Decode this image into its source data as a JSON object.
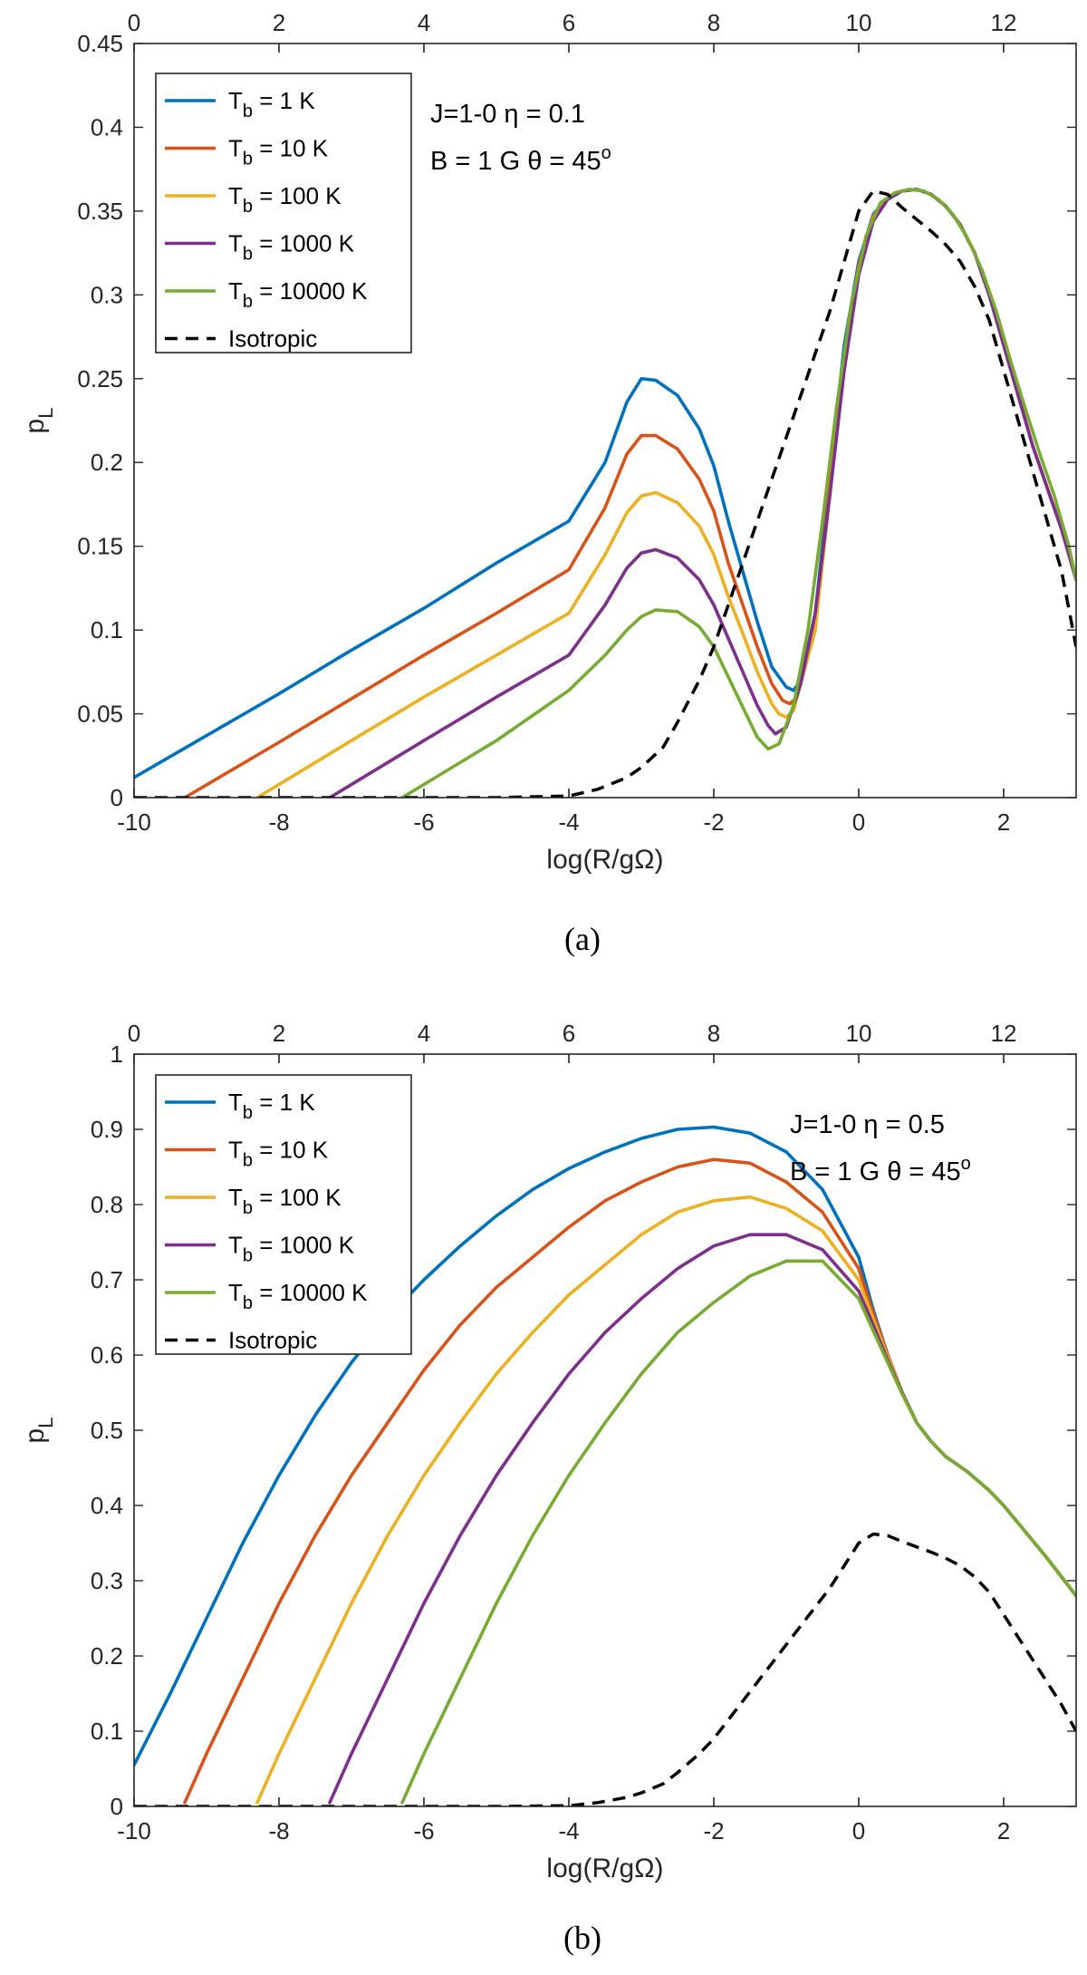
{
  "chart_data": [
    {
      "type": "line",
      "panel_label": "(a)",
      "xlabel": "log(R/gΩ)",
      "ylabel": "p",
      "ylabel_sub": "L",
      "xlim": [
        -10,
        3
      ],
      "ylim": [
        0,
        0.45
      ],
      "top_xlim": [
        0,
        13
      ],
      "xticks": [
        -10,
        -8,
        -6,
        -4,
        -2,
        0,
        2
      ],
      "yticks": [
        0,
        0.05,
        0.1,
        0.15,
        0.2,
        0.25,
        0.3,
        0.35,
        0.4,
        0.45
      ],
      "yticklabels": [
        "0",
        "0.05",
        "0.1",
        "0.15",
        "0.2",
        "0.25",
        "0.3",
        "0.35",
        "0.4",
        "0.45"
      ],
      "top_xticks": [
        0,
        2,
        4,
        6,
        8,
        10,
        12
      ],
      "legend_position": "top-left",
      "annotations": [
        {
          "line": "J=1-0  η = 0.1"
        },
        {
          "line": "B = 1 G  θ = 45o"
        }
      ],
      "series": [
        {
          "name": "Tb = 1 K",
          "label_main": "T",
          "label_sub": "b",
          "label_rest": " = 1 K",
          "color": "#0072BD",
          "style": "solid",
          "x": [
            -10,
            -9,
            -8,
            -7,
            -6,
            -5,
            -4,
            -3.5,
            -3.2,
            -3,
            -2.8,
            -2.5,
            -2.2,
            -2,
            -1.8,
            -1.6,
            -1.4,
            -1.2,
            -1.0,
            -0.9,
            -0.8,
            -0.6,
            -0.4,
            -0.2,
            0,
            0.2,
            0.4,
            0.6,
            0.8,
            1.0,
            1.2,
            1.4,
            1.6,
            1.8,
            2.0,
            2.2,
            2.4,
            2.6,
            2.8,
            3.0
          ],
          "y": [
            0.012,
            0.037,
            0.062,
            0.088,
            0.113,
            0.14,
            0.165,
            0.2,
            0.236,
            0.25,
            0.249,
            0.24,
            0.22,
            0.198,
            0.165,
            0.135,
            0.105,
            0.078,
            0.066,
            0.064,
            0.07,
            0.11,
            0.19,
            0.27,
            0.32,
            0.348,
            0.358,
            0.362,
            0.363,
            0.36,
            0.353,
            0.342,
            0.325,
            0.3,
            0.27,
            0.24,
            0.21,
            0.185,
            0.16,
            0.13
          ]
        },
        {
          "name": "Tb = 10 K",
          "label_main": "T",
          "label_sub": "b",
          "label_rest": " = 10 K",
          "color": "#D95319",
          "style": "solid",
          "x": [
            -9.3,
            -8,
            -7,
            -6,
            -5,
            -4,
            -3.5,
            -3.2,
            -3,
            -2.8,
            -2.5,
            -2.2,
            -2,
            -1.8,
            -1.6,
            -1.4,
            -1.2,
            -1.05,
            -0.95,
            -0.85,
            -0.6,
            -0.4,
            -0.2,
            0,
            0.2,
            0.4,
            0.6,
            0.8,
            1.0,
            1.2,
            1.4,
            1.6,
            1.8,
            2.0,
            2.2,
            2.4,
            2.6,
            2.8,
            3.0
          ],
          "y": [
            0.0,
            0.033,
            0.059,
            0.085,
            0.11,
            0.136,
            0.173,
            0.205,
            0.216,
            0.216,
            0.208,
            0.19,
            0.171,
            0.14,
            0.115,
            0.09,
            0.068,
            0.058,
            0.056,
            0.06,
            0.105,
            0.185,
            0.265,
            0.318,
            0.347,
            0.358,
            0.362,
            0.363,
            0.36,
            0.353,
            0.342,
            0.325,
            0.3,
            0.27,
            0.24,
            0.21,
            0.185,
            0.16,
            0.13
          ]
        },
        {
          "name": "Tb = 100 K",
          "label_main": "T",
          "label_sub": "b",
          "label_rest": " = 100 K",
          "color": "#EDB120",
          "style": "solid",
          "x": [
            -8.3,
            -7,
            -6,
            -5,
            -4,
            -3.5,
            -3.2,
            -3,
            -2.8,
            -2.5,
            -2.2,
            -2,
            -1.8,
            -1.6,
            -1.4,
            -1.2,
            -1.1,
            -1.0,
            -0.9,
            -0.6,
            -0.4,
            -0.2,
            0,
            0.2,
            0.4,
            0.6,
            0.8,
            1.0,
            1.2,
            1.4,
            1.6,
            1.8,
            2.0,
            2.2,
            2.4,
            2.6,
            2.8,
            3.0
          ],
          "y": [
            0.0,
            0.034,
            0.06,
            0.085,
            0.11,
            0.145,
            0.17,
            0.18,
            0.182,
            0.176,
            0.162,
            0.145,
            0.12,
            0.098,
            0.075,
            0.056,
            0.05,
            0.048,
            0.052,
            0.1,
            0.18,
            0.26,
            0.315,
            0.346,
            0.358,
            0.362,
            0.363,
            0.36,
            0.353,
            0.342,
            0.325,
            0.3,
            0.27,
            0.24,
            0.21,
            0.185,
            0.16,
            0.13
          ]
        },
        {
          "name": "Tb = 1000 K",
          "label_main": "T",
          "label_sub": "b",
          "label_rest": " = 1000 K",
          "color": "#7E2F8E",
          "style": "solid",
          "x": [
            -7.3,
            -6,
            -5,
            -4,
            -3.5,
            -3.2,
            -3,
            -2.8,
            -2.5,
            -2.2,
            -2,
            -1.8,
            -1.6,
            -1.4,
            -1.25,
            -1.15,
            -1.0,
            -0.8,
            -0.6,
            -0.4,
            -0.2,
            0,
            0.2,
            0.4,
            0.6,
            0.8,
            1.0,
            1.2,
            1.4,
            1.6,
            1.8,
            2.0,
            2.2,
            2.4,
            2.6,
            2.8,
            3.0
          ],
          "y": [
            0.0,
            0.034,
            0.06,
            0.085,
            0.115,
            0.137,
            0.146,
            0.148,
            0.143,
            0.13,
            0.115,
            0.095,
            0.075,
            0.055,
            0.043,
            0.038,
            0.042,
            0.068,
            0.11,
            0.18,
            0.255,
            0.312,
            0.344,
            0.357,
            0.362,
            0.363,
            0.36,
            0.353,
            0.342,
            0.325,
            0.3,
            0.27,
            0.24,
            0.21,
            0.185,
            0.16,
            0.13
          ]
        },
        {
          "name": "Tb = 10000 K",
          "label_main": "T",
          "label_sub": "b",
          "label_rest": " = 10000 K",
          "color": "#77AC30",
          "style": "solid",
          "x": [
            -6.3,
            -5,
            -4,
            -3.5,
            -3.2,
            -3,
            -2.8,
            -2.5,
            -2.2,
            -2,
            -1.8,
            -1.6,
            -1.4,
            -1.25,
            -1.1,
            -0.9,
            -0.7,
            -0.5,
            -0.3,
            -0.1,
            0.1,
            0.3,
            0.5,
            0.7,
            0.9,
            1.1,
            1.3,
            1.5,
            1.7,
            1.9,
            2.1,
            2.3,
            2.5,
            2.7,
            2.9,
            3.0
          ],
          "y": [
            0.0,
            0.034,
            0.064,
            0.085,
            0.1,
            0.108,
            0.112,
            0.111,
            0.102,
            0.09,
            0.072,
            0.054,
            0.036,
            0.029,
            0.032,
            0.055,
            0.1,
            0.165,
            0.235,
            0.295,
            0.335,
            0.355,
            0.361,
            0.363,
            0.362,
            0.357,
            0.348,
            0.334,
            0.315,
            0.29,
            0.26,
            0.232,
            0.205,
            0.18,
            0.15,
            0.13
          ]
        },
        {
          "name": "Isotropic",
          "label_main": "Isotropic",
          "label_sub": "",
          "label_rest": "",
          "color": "#000000",
          "style": "dashed",
          "x": [
            -10,
            -8,
            -6,
            -5,
            -4,
            -3.6,
            -3.2,
            -3,
            -2.7,
            -2.5,
            -2.2,
            -2,
            -1.8,
            -1.6,
            -1.4,
            -1.2,
            -1.0,
            -0.8,
            -0.6,
            -0.4,
            -0.2,
            0,
            0.2,
            0.4,
            0.6,
            0.8,
            1.0,
            1.2,
            1.4,
            1.6,
            1.8,
            2.0,
            2.2,
            2.4,
            2.6,
            2.8,
            3.0
          ],
          "y": [
            0,
            0,
            0,
            0,
            0.001,
            0.005,
            0.012,
            0.018,
            0.03,
            0.045,
            0.07,
            0.09,
            0.115,
            0.14,
            0.165,
            0.19,
            0.215,
            0.24,
            0.265,
            0.29,
            0.32,
            0.35,
            0.362,
            0.36,
            0.352,
            0.345,
            0.338,
            0.33,
            0.32,
            0.305,
            0.285,
            0.255,
            0.225,
            0.195,
            0.165,
            0.135,
            0.09
          ]
        }
      ]
    },
    {
      "type": "line",
      "panel_label": "(b)",
      "xlabel": "log(R/gΩ)",
      "ylabel": "p",
      "ylabel_sub": "L",
      "xlim": [
        -10,
        3
      ],
      "ylim": [
        0,
        1
      ],
      "top_xlim": [
        0,
        13
      ],
      "xticks": [
        -10,
        -8,
        -6,
        -4,
        -2,
        0,
        2
      ],
      "yticks": [
        0,
        0.1,
        0.2,
        0.3,
        0.4,
        0.5,
        0.6,
        0.7,
        0.8,
        0.9,
        1
      ],
      "yticklabels": [
        "0",
        "0.1",
        "0.2",
        "0.3",
        "0.4",
        "0.5",
        "0.6",
        "0.7",
        "0.8",
        "0.9",
        "1"
      ],
      "top_xticks": [
        0,
        2,
        4,
        6,
        8,
        10,
        12
      ],
      "legend_position": "top-left",
      "annotations": [
        {
          "line": "J=1-0  η = 0.5"
        },
        {
          "line": "B = 1 G  θ = 45o"
        }
      ],
      "series": [
        {
          "name": "Tb = 1 K",
          "label_main": "T",
          "label_sub": "b",
          "label_rest": " = 1 K",
          "color": "#0072BD",
          "style": "solid",
          "x": [
            -10,
            -9.5,
            -9,
            -8.5,
            -8,
            -7.5,
            -7,
            -6.5,
            -6,
            -5.5,
            -5,
            -4.5,
            -4,
            -3.5,
            -3,
            -2.5,
            -2,
            -1.5,
            -1,
            -0.5,
            0,
            0.2,
            0.4,
            0.6,
            0.8,
            1.0,
            1.2,
            1.5,
            1.8,
            2.0,
            2.3,
            2.6,
            3.0
          ],
          "y": [
            0.055,
            0.15,
            0.25,
            0.35,
            0.44,
            0.52,
            0.59,
            0.65,
            0.7,
            0.745,
            0.785,
            0.82,
            0.848,
            0.87,
            0.888,
            0.9,
            0.903,
            0.895,
            0.87,
            0.82,
            0.73,
            0.66,
            0.6,
            0.55,
            0.51,
            0.485,
            0.465,
            0.445,
            0.42,
            0.4,
            0.365,
            0.33,
            0.28
          ]
        },
        {
          "name": "Tb = 10 K",
          "label_main": "T",
          "label_sub": "b",
          "label_rest": " = 10 K",
          "color": "#D95319",
          "style": "solid",
          "x": [
            -9.3,
            -9,
            -8.5,
            -8,
            -7.5,
            -7,
            -6.5,
            -6,
            -5.5,
            -5,
            -4.5,
            -4,
            -3.5,
            -3,
            -2.5,
            -2,
            -1.5,
            -1,
            -0.5,
            0,
            0.2,
            0.4,
            0.6,
            0.8,
            1.0,
            1.2,
            1.5,
            1.8,
            2.0,
            2.3,
            2.6,
            3.0
          ],
          "y": [
            0.005,
            0.07,
            0.17,
            0.27,
            0.36,
            0.44,
            0.51,
            0.58,
            0.64,
            0.69,
            0.73,
            0.77,
            0.805,
            0.83,
            0.85,
            0.86,
            0.855,
            0.83,
            0.79,
            0.715,
            0.655,
            0.6,
            0.55,
            0.51,
            0.485,
            0.465,
            0.445,
            0.42,
            0.4,
            0.365,
            0.33,
            0.28
          ]
        },
        {
          "name": "Tb = 100 K",
          "label_main": "T",
          "label_sub": "b",
          "label_rest": " = 100 K",
          "color": "#EDB120",
          "style": "solid",
          "x": [
            -8.3,
            -8,
            -7.5,
            -7,
            -6.5,
            -6,
            -5.5,
            -5,
            -4.5,
            -4,
            -3.5,
            -3,
            -2.5,
            -2,
            -1.5,
            -1,
            -0.5,
            0,
            0.2,
            0.4,
            0.6,
            0.8,
            1.0,
            1.2,
            1.5,
            1.8,
            2.0,
            2.3,
            2.6,
            3.0
          ],
          "y": [
            0.005,
            0.07,
            0.17,
            0.27,
            0.36,
            0.44,
            0.51,
            0.575,
            0.63,
            0.68,
            0.72,
            0.76,
            0.79,
            0.805,
            0.81,
            0.795,
            0.765,
            0.7,
            0.648,
            0.597,
            0.55,
            0.51,
            0.485,
            0.465,
            0.445,
            0.42,
            0.4,
            0.365,
            0.33,
            0.28
          ]
        },
        {
          "name": "Tb = 1000 K",
          "label_main": "T",
          "label_sub": "b",
          "label_rest": " = 1000 K",
          "color": "#7E2F8E",
          "style": "solid",
          "x": [
            -7.3,
            -7,
            -6.5,
            -6,
            -5.5,
            -5,
            -4.5,
            -4,
            -3.5,
            -3,
            -2.5,
            -2,
            -1.5,
            -1,
            -0.5,
            0,
            0.2,
            0.4,
            0.6,
            0.8,
            1.0,
            1.2,
            1.5,
            1.8,
            2.0,
            2.3,
            2.6,
            3.0
          ],
          "y": [
            0.005,
            0.07,
            0.17,
            0.27,
            0.36,
            0.44,
            0.51,
            0.575,
            0.63,
            0.675,
            0.715,
            0.745,
            0.76,
            0.76,
            0.74,
            0.685,
            0.64,
            0.593,
            0.55,
            0.51,
            0.485,
            0.465,
            0.445,
            0.42,
            0.4,
            0.365,
            0.33,
            0.28
          ]
        },
        {
          "name": "Tb = 10000 K",
          "label_main": "T",
          "label_sub": "b",
          "label_rest": " = 10000 K",
          "color": "#77AC30",
          "style": "solid",
          "x": [
            -6.3,
            -6,
            -5.5,
            -5,
            -4.5,
            -4,
            -3.5,
            -3,
            -2.5,
            -2,
            -1.5,
            -1,
            -0.5,
            0,
            0.2,
            0.4,
            0.6,
            0.8,
            1.0,
            1.2,
            1.5,
            1.8,
            2.0,
            2.3,
            2.6,
            3.0
          ],
          "y": [
            0.005,
            0.07,
            0.17,
            0.27,
            0.36,
            0.44,
            0.51,
            0.575,
            0.63,
            0.67,
            0.705,
            0.725,
            0.725,
            0.675,
            0.632,
            0.59,
            0.548,
            0.51,
            0.485,
            0.465,
            0.445,
            0.42,
            0.4,
            0.365,
            0.33,
            0.28
          ]
        },
        {
          "name": "Isotropic",
          "label_main": "Isotropic",
          "label_sub": "",
          "label_rest": "",
          "color": "#000000",
          "style": "dashed",
          "x": [
            -10,
            -8,
            -6,
            -5,
            -4,
            -3.6,
            -3.2,
            -3,
            -2.7,
            -2.5,
            -2.2,
            -2,
            -1.8,
            -1.6,
            -1.4,
            -1.2,
            -1.0,
            -0.8,
            -0.6,
            -0.4,
            -0.2,
            0,
            0.2,
            0.4,
            0.6,
            0.8,
            1.0,
            1.2,
            1.4,
            1.6,
            1.8,
            2.0,
            2.2,
            2.4,
            2.6,
            2.8,
            3.0
          ],
          "y": [
            0,
            0,
            0,
            0,
            0.001,
            0.005,
            0.012,
            0.018,
            0.03,
            0.045,
            0.07,
            0.09,
            0.115,
            0.14,
            0.165,
            0.19,
            0.215,
            0.24,
            0.265,
            0.29,
            0.32,
            0.35,
            0.362,
            0.36,
            0.352,
            0.345,
            0.338,
            0.33,
            0.32,
            0.305,
            0.285,
            0.255,
            0.225,
            0.195,
            0.165,
            0.135,
            0.1
          ]
        }
      ]
    }
  ]
}
